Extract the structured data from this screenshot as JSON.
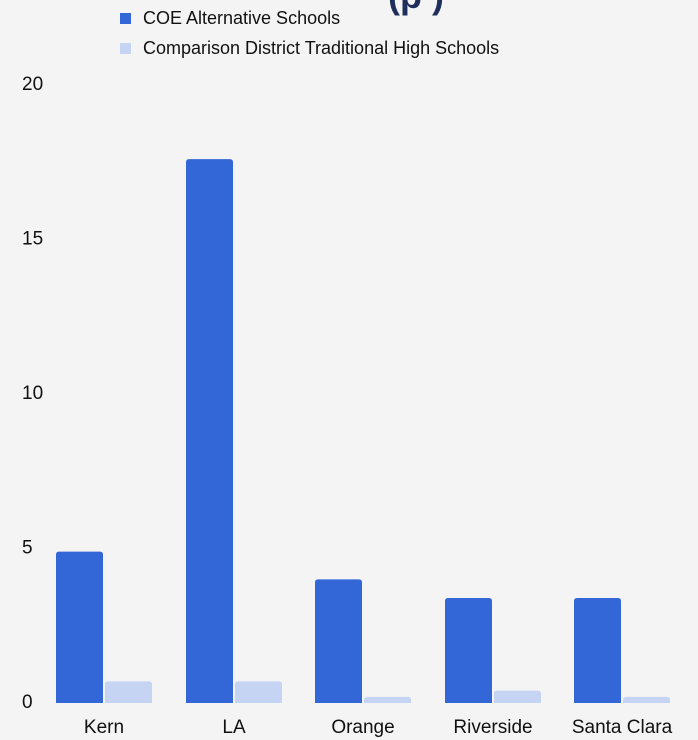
{
  "chart_data": {
    "type": "bar",
    "title_visible_fragment": "(p                    )",
    "categories": [
      "Kern",
      "LA",
      "Orange",
      "Riverside",
      "Santa  Clara"
    ],
    "series": [
      {
        "name": "COE Alternative Schools",
        "color": "#3366d6",
        "values": [
          4.9,
          17.6,
          4.0,
          3.4,
          3.4
        ]
      },
      {
        "name": "Comparison District Traditional High Schools",
        "color": "#c5d4f3",
        "values": [
          0.7,
          0.7,
          0.2,
          0.4,
          0.2
        ]
      }
    ],
    "y_ticks": [
      "0",
      "5",
      "10",
      "15",
      "20"
    ],
    "ylim": [
      0,
      20
    ],
    "grid": false,
    "legend_position": "top-left"
  }
}
